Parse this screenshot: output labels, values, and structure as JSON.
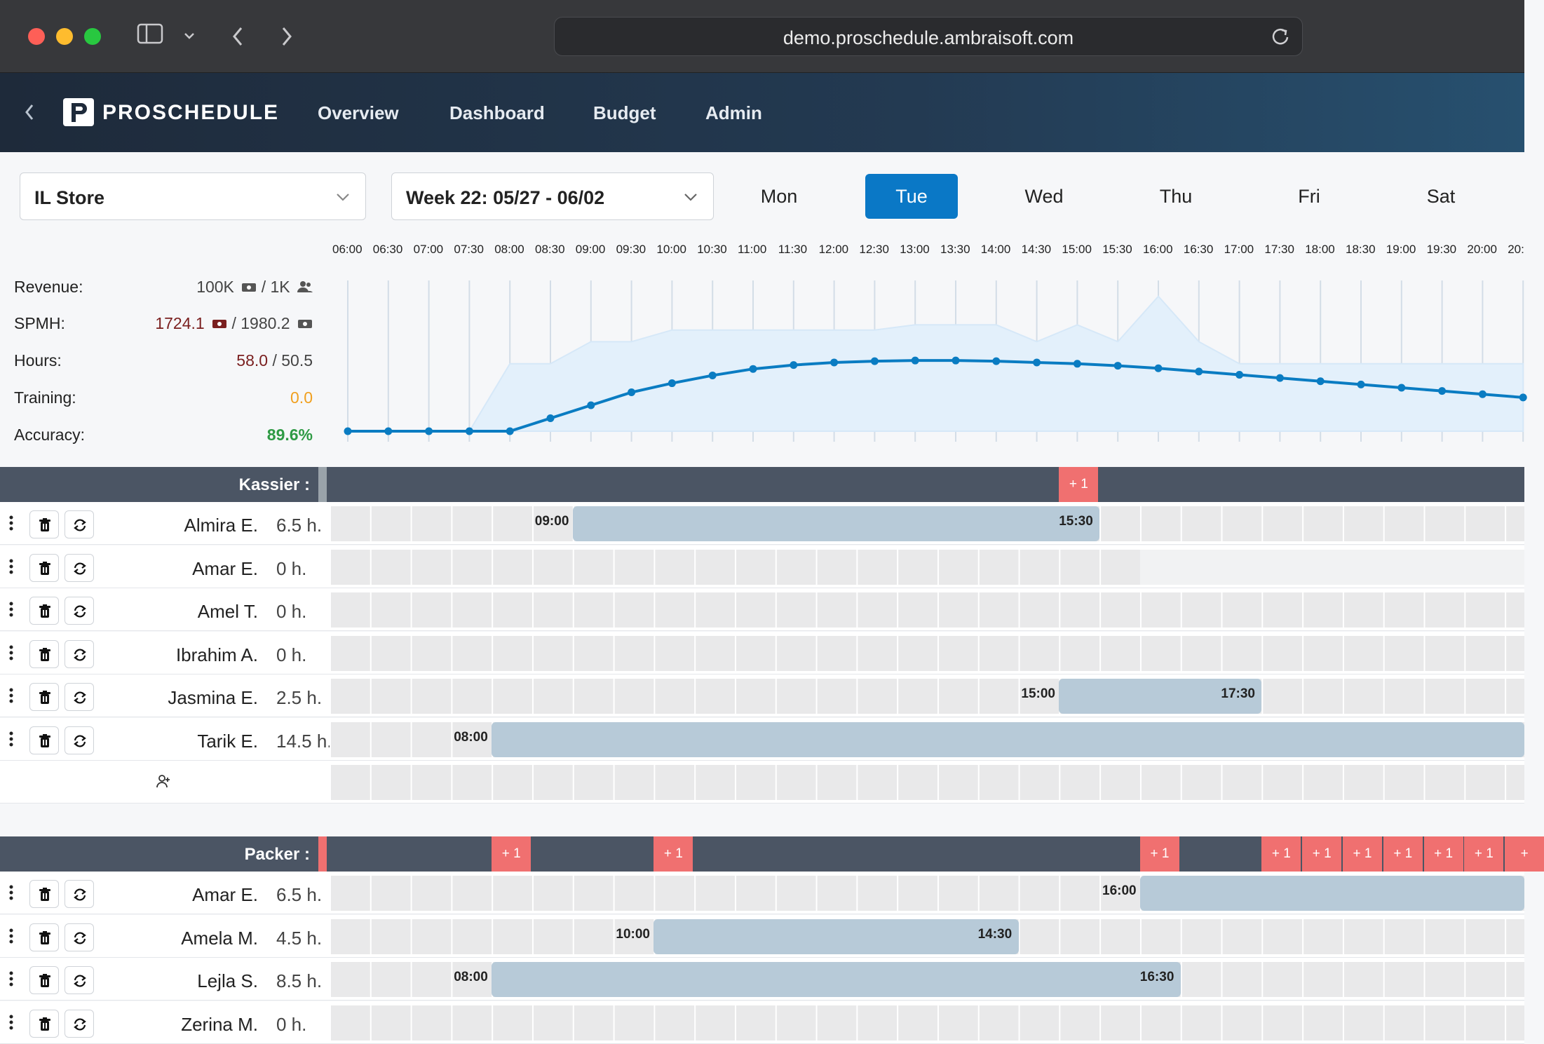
{
  "browser": {
    "url": "demo.proschedule.ambraisoft.com"
  },
  "app": {
    "brand": "PROSCHEDULE",
    "nav": [
      "Overview",
      "Dashboard",
      "Budget",
      "Admin"
    ]
  },
  "controls": {
    "store": "IL Store",
    "week": "Week 22: 05/27 - 06/02",
    "days": [
      "Mon",
      "Tue",
      "Wed",
      "Thu",
      "Fri",
      "Sat"
    ],
    "active_day": "Tue"
  },
  "times": [
    "06:00",
    "06:30",
    "07:00",
    "07:30",
    "08:00",
    "08:30",
    "09:00",
    "09:30",
    "10:00",
    "10:30",
    "11:00",
    "11:30",
    "12:00",
    "12:30",
    "13:00",
    "13:30",
    "14:00",
    "14:30",
    "15:00",
    "15:30",
    "16:00",
    "16:30",
    "17:00",
    "17:30",
    "18:00",
    "18:30",
    "19:00",
    "19:30",
    "20:00",
    "20:"
  ],
  "stats": {
    "revenue": {
      "label": "Revenue:",
      "value": "100K",
      "sep": "/ 1K"
    },
    "spmh": {
      "label": "SPMH:",
      "value": "1724.1",
      "sep": "/ 1980.2"
    },
    "hours": {
      "label": "Hours:",
      "value": "58.0",
      "sep": "/ 50.5"
    },
    "training": {
      "label": "Training:",
      "value": "0.0"
    },
    "accuracy": {
      "label": "Accuracy:",
      "value": "89.6%"
    }
  },
  "chart_data": {
    "type": "line",
    "x": [
      "06:00",
      "06:30",
      "07:00",
      "07:30",
      "08:00",
      "08:30",
      "09:00",
      "09:30",
      "10:00",
      "10:30",
      "11:00",
      "11:30",
      "12:00",
      "12:30",
      "13:00",
      "13:30",
      "14:00",
      "14:30",
      "15:00",
      "15:30",
      "16:00",
      "16:30",
      "17:00",
      "17:30",
      "18:00",
      "18:30",
      "19:00",
      "19:30",
      "20:00",
      "20:30"
    ],
    "series": [
      {
        "values": [
          0,
          0,
          0,
          0,
          0,
          10,
          20,
          30,
          37,
          43,
          48,
          51,
          53,
          54,
          54.5,
          54.5,
          54,
          53,
          52,
          50.5,
          48.5,
          46,
          43.5,
          41,
          38.5,
          36,
          33.5,
          31,
          28.5,
          26
        ]
      },
      {
        "values": [
          0,
          0,
          0,
          0,
          52,
          52,
          69,
          69,
          78,
          78,
          78,
          78,
          78,
          78,
          82,
          82,
          82,
          69,
          82,
          69,
          104,
          69,
          52,
          52,
          52,
          52,
          52,
          52,
          52,
          52
        ]
      }
    ],
    "colors": {
      "line": "#0a7cc2",
      "area": "#e3f0fb"
    },
    "grid": true
  },
  "groups": [
    {
      "name": "Kassier :",
      "accent": "#9aa3aa",
      "badges": [
        {
          "slot": 18,
          "text": "+ 1"
        }
      ],
      "rows": [
        {
          "name": "Almira E.",
          "hours": "6.5 h.",
          "start": "09:00",
          "end": "15:30",
          "s": 6,
          "e": 19
        },
        {
          "name": "Amar E.",
          "hours": "0 h.",
          "fade_from": 20
        },
        {
          "name": "Amel T.",
          "hours": "0 h."
        },
        {
          "name": "Ibrahim A.",
          "hours": "0 h."
        },
        {
          "name": "Jasmina E.",
          "hours": "2.5 h.",
          "start": "15:00",
          "end": "17:30",
          "s": 18,
          "e": 23
        },
        {
          "name": "Tarik E.",
          "hours": "14.5 h.",
          "start": "08:00",
          "end": "",
          "s": 4,
          "e": 30
        }
      ]
    },
    {
      "name": "Packer :",
      "accent": "#f07070",
      "badges": [
        {
          "slot": 4,
          "text": "+ 1"
        },
        {
          "slot": 8,
          "text": "+ 1"
        },
        {
          "slot": 20,
          "text": "+ 1"
        },
        {
          "slot": 23,
          "text": "+ 1"
        },
        {
          "slot": 24,
          "text": "+ 1"
        },
        {
          "slot": 25,
          "text": "+ 1"
        },
        {
          "slot": 26,
          "text": "+ 1"
        },
        {
          "slot": 27,
          "text": "+ 1"
        },
        {
          "slot": 28,
          "text": "+ 1"
        },
        {
          "slot": 29,
          "text": "+"
        }
      ],
      "rows": [
        {
          "name": "Amar E.",
          "hours": "6.5 h.",
          "start": "16:00",
          "end": "",
          "s": 20,
          "e": 30
        },
        {
          "name": "Amela M.",
          "hours": "4.5 h.",
          "start": "10:00",
          "end": "14:30",
          "s": 8,
          "e": 17
        },
        {
          "name": "Lejla S.",
          "hours": "8.5 h.",
          "start": "08:00",
          "end": "16:30",
          "s": 4,
          "e": 21
        },
        {
          "name": "Zerina M.",
          "hours": "0 h."
        }
      ]
    }
  ]
}
